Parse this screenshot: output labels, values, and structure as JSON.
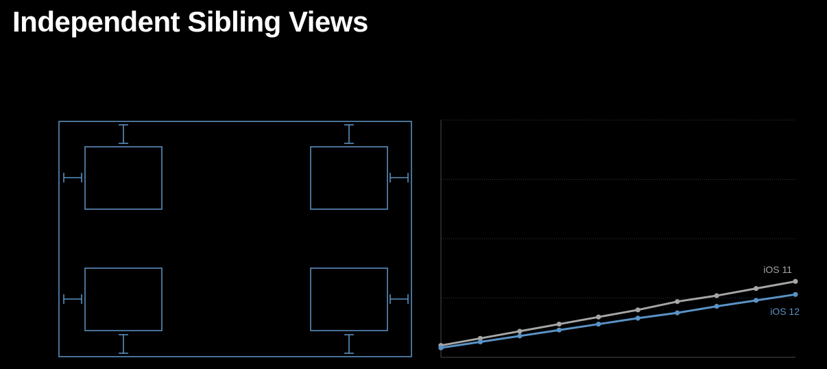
{
  "slide": {
    "title": "Independent Sibling Views"
  },
  "colors": {
    "background": "#000000",
    "diagram_stroke": "#5b8fbf",
    "ios11_line": "#a6a6a6",
    "ios12_line": "#5a93c6",
    "gridline": "#3a3a3a",
    "axis": "#4a4a4a"
  },
  "diagram": {
    "subview_count": 4,
    "constraint_count": 8
  },
  "chart_data": {
    "type": "line",
    "title": "",
    "xlabel": "",
    "ylabel": "",
    "grid": true,
    "ylim": [
      0,
      4
    ],
    "x": [
      0,
      1,
      2,
      3,
      4,
      5,
      6,
      7,
      8,
      9
    ],
    "series": [
      {
        "name": "iOS 11",
        "color": "#a6a6a6",
        "values": [
          0.2,
          0.32,
          0.44,
          0.56,
          0.68,
          0.8,
          0.94,
          1.04,
          1.16,
          1.28
        ]
      },
      {
        "name": "iOS 12",
        "color": "#5a93c6",
        "values": [
          0.16,
          0.26,
          0.36,
          0.46,
          0.56,
          0.66,
          0.75,
          0.86,
          0.96,
          1.06
        ]
      }
    ]
  }
}
